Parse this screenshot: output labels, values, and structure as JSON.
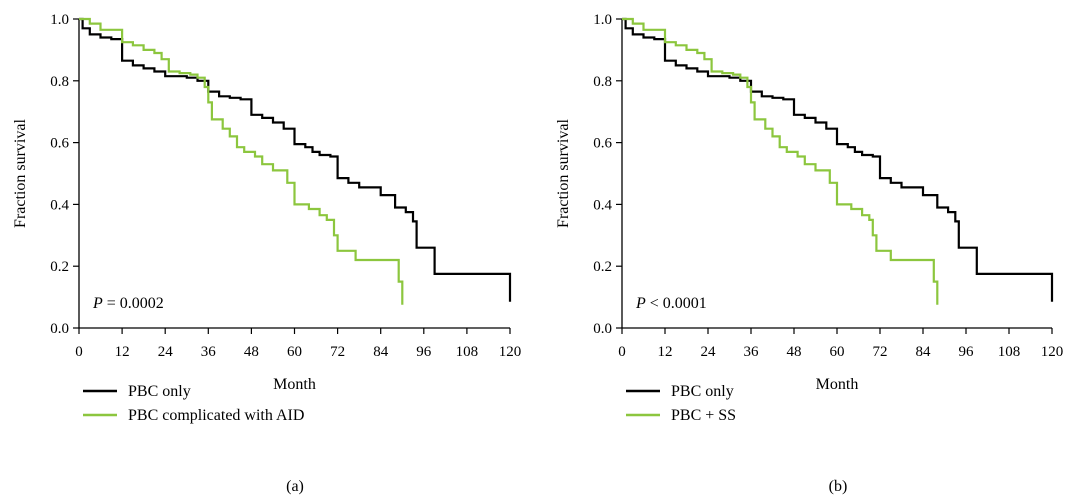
{
  "chart_data": [
    {
      "type": "line",
      "panel_label": "(a)",
      "xlabel": "Month",
      "ylabel": "Fraction survival",
      "xlim": [
        0,
        120
      ],
      "ylim": [
        0.0,
        1.0
      ],
      "x_ticks": [
        0,
        12,
        24,
        36,
        48,
        60,
        72,
        84,
        96,
        108,
        120
      ],
      "y_ticks": [
        "0.0",
        "0.2",
        "0.4",
        "0.6",
        "0.8",
        "1.0"
      ],
      "annotation": {
        "letter": "P",
        "rest": " = 0.0002"
      },
      "legend_position": "bottom-left",
      "grid": false,
      "series": [
        {
          "name": "PBC only",
          "color": "#000000",
          "points": [
            [
              0,
              1.0
            ],
            [
              1,
              0.97
            ],
            [
              3,
              0.95
            ],
            [
              6,
              0.94
            ],
            [
              9,
              0.935
            ],
            [
              12,
              0.865
            ],
            [
              15,
              0.85
            ],
            [
              18,
              0.84
            ],
            [
              21,
              0.83
            ],
            [
              24,
              0.815
            ],
            [
              30,
              0.81
            ],
            [
              33,
              0.8
            ],
            [
              36,
              0.765
            ],
            [
              39,
              0.75
            ],
            [
              42,
              0.745
            ],
            [
              45,
              0.74
            ],
            [
              48,
              0.69
            ],
            [
              51,
              0.68
            ],
            [
              54,
              0.665
            ],
            [
              57,
              0.645
            ],
            [
              60,
              0.595
            ],
            [
              63,
              0.585
            ],
            [
              65,
              0.57
            ],
            [
              67,
              0.56
            ],
            [
              70,
              0.555
            ],
            [
              72,
              0.485
            ],
            [
              75,
              0.47
            ],
            [
              78,
              0.455
            ],
            [
              84,
              0.43
            ],
            [
              88,
              0.39
            ],
            [
              91,
              0.375
            ],
            [
              93,
              0.345
            ],
            [
              94,
              0.26
            ],
            [
              99,
              0.175
            ],
            [
              120,
              0.085
            ]
          ]
        },
        {
          "name": "PBC complicated with AID",
          "color": "#8cc63e",
          "points": [
            [
              0,
              1.0
            ],
            [
              3,
              0.985
            ],
            [
              6,
              0.965
            ],
            [
              12,
              0.925
            ],
            [
              15,
              0.915
            ],
            [
              18,
              0.9
            ],
            [
              21,
              0.89
            ],
            [
              23,
              0.87
            ],
            [
              25,
              0.83
            ],
            [
              28,
              0.825
            ],
            [
              31,
              0.82
            ],
            [
              33,
              0.81
            ],
            [
              35,
              0.78
            ],
            [
              36,
              0.73
            ],
            [
              37,
              0.675
            ],
            [
              40,
              0.645
            ],
            [
              42,
              0.62
            ],
            [
              44,
              0.585
            ],
            [
              46,
              0.57
            ],
            [
              49,
              0.555
            ],
            [
              51,
              0.53
            ],
            [
              54,
              0.51
            ],
            [
              58,
              0.47
            ],
            [
              60,
              0.4
            ],
            [
              64,
              0.385
            ],
            [
              67,
              0.365
            ],
            [
              69,
              0.35
            ],
            [
              71,
              0.3
            ],
            [
              72,
              0.25
            ],
            [
              77,
              0.22
            ],
            [
              88,
              0.22
            ],
            [
              89,
              0.15
            ],
            [
              90,
              0.075
            ]
          ]
        }
      ]
    },
    {
      "type": "line",
      "panel_label": "(b)",
      "xlabel": "Month",
      "ylabel": "Fraction survival",
      "xlim": [
        0,
        120
      ],
      "ylim": [
        0.0,
        1.0
      ],
      "x_ticks": [
        0,
        12,
        24,
        36,
        48,
        60,
        72,
        84,
        96,
        108,
        120
      ],
      "y_ticks": [
        "0.0",
        "0.2",
        "0.4",
        "0.6",
        "0.8",
        "1.0"
      ],
      "annotation": {
        "letter": "P",
        "rest": " < 0.0001"
      },
      "legend_position": "bottom-left",
      "grid": false,
      "series": [
        {
          "name": "PBC only",
          "color": "#000000",
          "points": [
            [
              0,
              1.0
            ],
            [
              1,
              0.97
            ],
            [
              3,
              0.95
            ],
            [
              6,
              0.94
            ],
            [
              9,
              0.935
            ],
            [
              12,
              0.865
            ],
            [
              15,
              0.85
            ],
            [
              18,
              0.84
            ],
            [
              21,
              0.83
            ],
            [
              24,
              0.815
            ],
            [
              30,
              0.81
            ],
            [
              33,
              0.8
            ],
            [
              36,
              0.765
            ],
            [
              39,
              0.75
            ],
            [
              42,
              0.745
            ],
            [
              45,
              0.74
            ],
            [
              48,
              0.69
            ],
            [
              51,
              0.68
            ],
            [
              54,
              0.665
            ],
            [
              57,
              0.645
            ],
            [
              60,
              0.595
            ],
            [
              63,
              0.585
            ],
            [
              65,
              0.57
            ],
            [
              67,
              0.56
            ],
            [
              70,
              0.555
            ],
            [
              72,
              0.485
            ],
            [
              75,
              0.47
            ],
            [
              78,
              0.455
            ],
            [
              84,
              0.43
            ],
            [
              88,
              0.39
            ],
            [
              91,
              0.375
            ],
            [
              93,
              0.345
            ],
            [
              94,
              0.26
            ],
            [
              99,
              0.175
            ],
            [
              120,
              0.085
            ]
          ]
        },
        {
          "name": "PBC + SS",
          "color": "#8cc63e",
          "points": [
            [
              0,
              1.0
            ],
            [
              3,
              0.985
            ],
            [
              6,
              0.965
            ],
            [
              12,
              0.925
            ],
            [
              15,
              0.915
            ],
            [
              18,
              0.9
            ],
            [
              21,
              0.89
            ],
            [
              23,
              0.87
            ],
            [
              25,
              0.83
            ],
            [
              28,
              0.825
            ],
            [
              31,
              0.82
            ],
            [
              33,
              0.81
            ],
            [
              35,
              0.78
            ],
            [
              36,
              0.73
            ],
            [
              37,
              0.675
            ],
            [
              40,
              0.645
            ],
            [
              42,
              0.62
            ],
            [
              44,
              0.585
            ],
            [
              46,
              0.57
            ],
            [
              49,
              0.555
            ],
            [
              51,
              0.53
            ],
            [
              54,
              0.51
            ],
            [
              58,
              0.47
            ],
            [
              60,
              0.4
            ],
            [
              64,
              0.385
            ],
            [
              67,
              0.365
            ],
            [
              69,
              0.35
            ],
            [
              70,
              0.3
            ],
            [
              71,
              0.25
            ],
            [
              75,
              0.22
            ],
            [
              86,
              0.22
            ],
            [
              87,
              0.15
            ],
            [
              88,
              0.075
            ]
          ]
        }
      ]
    }
  ]
}
